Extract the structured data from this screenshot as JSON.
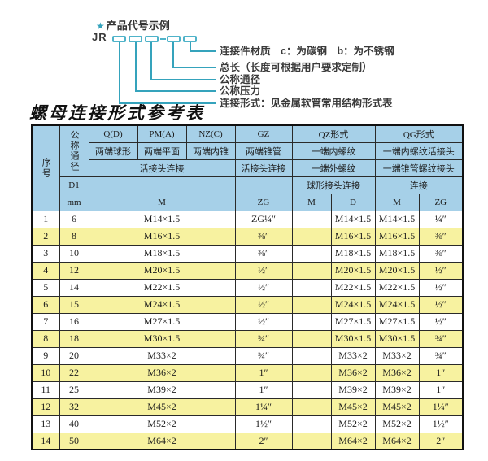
{
  "diagram": {
    "star": "★",
    "title": "产品代号示例",
    "prefix": "JR",
    "labels": [
      "连接件材质　c：为碳钢　b：为不锈钢",
      "总长（长度可根据用户要求定制）",
      "公称通径",
      "公称压力",
      "连接形式：见金属软管常用结构形式表"
    ],
    "accent_color": "#35a3bc"
  },
  "table": {
    "title": "螺母连接形式参考表",
    "colors": {
      "header_bg": "#a6d0e8",
      "row_alt_bg": "#f7f2a0"
    },
    "header": {
      "col_serial": "序号",
      "col_dn": "公称通径",
      "d1": "D1",
      "unit": "mm",
      "groups": [
        "Q(D)",
        "PM(A)",
        "NZ(C)",
        "GZ",
        "QZ形式",
        "QG形式"
      ],
      "sub1": [
        "两端球形",
        "两端平面",
        "两端内锥",
        "两端锥管",
        "一端内螺纹",
        "一端内螺纹活接头"
      ],
      "sub2": [
        "活接头连接",
        "活接头连接",
        "一端外螺纹",
        "一端锥管螺纹接头"
      ],
      "sub3": [
        "球形接头连接",
        "连接"
      ],
      "units": [
        "M",
        "ZG",
        "M",
        "D",
        "M",
        "ZG"
      ]
    },
    "rows": [
      {
        "no": "1",
        "dn": "6",
        "m": "M14×1.5",
        "zg": "ZG¼″",
        "qz_m": "",
        "qz_d": "M14×1.5",
        "qg_m": "M14×1.5",
        "qg_zg": "¼″"
      },
      {
        "no": "2",
        "dn": "8",
        "m": "M16×1.5",
        "zg": "⅜″",
        "qz_m": "",
        "qz_d": "M16×1.5",
        "qg_m": "M16×1.5",
        "qg_zg": "⅜″"
      },
      {
        "no": "3",
        "dn": "10",
        "m": "M18×1.5",
        "zg": "⅜″",
        "qz_m": "",
        "qz_d": "M18×1.5",
        "qg_m": "M18×1.5",
        "qg_zg": "⅜″"
      },
      {
        "no": "4",
        "dn": "12",
        "m": "M20×1.5",
        "zg": "½″",
        "qz_m": "",
        "qz_d": "M20×1.5",
        "qg_m": "M20×1.5",
        "qg_zg": "½″"
      },
      {
        "no": "5",
        "dn": "14",
        "m": "M22×1.5",
        "zg": "½″",
        "qz_m": "",
        "qz_d": "M22×1.5",
        "qg_m": "M22×1.5",
        "qg_zg": "½″"
      },
      {
        "no": "6",
        "dn": "15",
        "m": "M24×1.5",
        "zg": "½″",
        "qz_m": "",
        "qz_d": "M24×1.5",
        "qg_m": "M24×1.5",
        "qg_zg": "½″"
      },
      {
        "no": "7",
        "dn": "16",
        "m": "M27×1.5",
        "zg": "½″",
        "qz_m": "",
        "qz_d": "M27×1.5",
        "qg_m": "M27×1.5",
        "qg_zg": "½″"
      },
      {
        "no": "8",
        "dn": "18",
        "m": "M30×1.5",
        "zg": "¾″",
        "qz_m": "",
        "qz_d": "M30×1.5",
        "qg_m": "M30×1.5",
        "qg_zg": "¾″"
      },
      {
        "no": "9",
        "dn": "20",
        "m": "M33×2",
        "zg": "¾″",
        "qz_m": "",
        "qz_d": "M33×2",
        "qg_m": "M33×2",
        "qg_zg": "¾″"
      },
      {
        "no": "10",
        "dn": "22",
        "m": "M36×2",
        "zg": "1″",
        "qz_m": "",
        "qz_d": "M36×2",
        "qg_m": "M36×2",
        "qg_zg": "1″"
      },
      {
        "no": "11",
        "dn": "25",
        "m": "M39×2",
        "zg": "1″",
        "qz_m": "",
        "qz_d": "M39×2",
        "qg_m": "M39×2",
        "qg_zg": "1″"
      },
      {
        "no": "12",
        "dn": "32",
        "m": "M45×2",
        "zg": "1¼″",
        "qz_m": "",
        "qz_d": "M45×2",
        "qg_m": "M45×2",
        "qg_zg": "1¼″"
      },
      {
        "no": "13",
        "dn": "40",
        "m": "M52×2",
        "zg": "1½″",
        "qz_m": "",
        "qz_d": "M52×2",
        "qg_m": "M52×2",
        "qg_zg": "1½″"
      },
      {
        "no": "14",
        "dn": "50",
        "m": "M64×2",
        "zg": "2″",
        "qz_m": "",
        "qz_d": "M64×2",
        "qg_m": "M64×2",
        "qg_zg": "2″"
      }
    ]
  }
}
